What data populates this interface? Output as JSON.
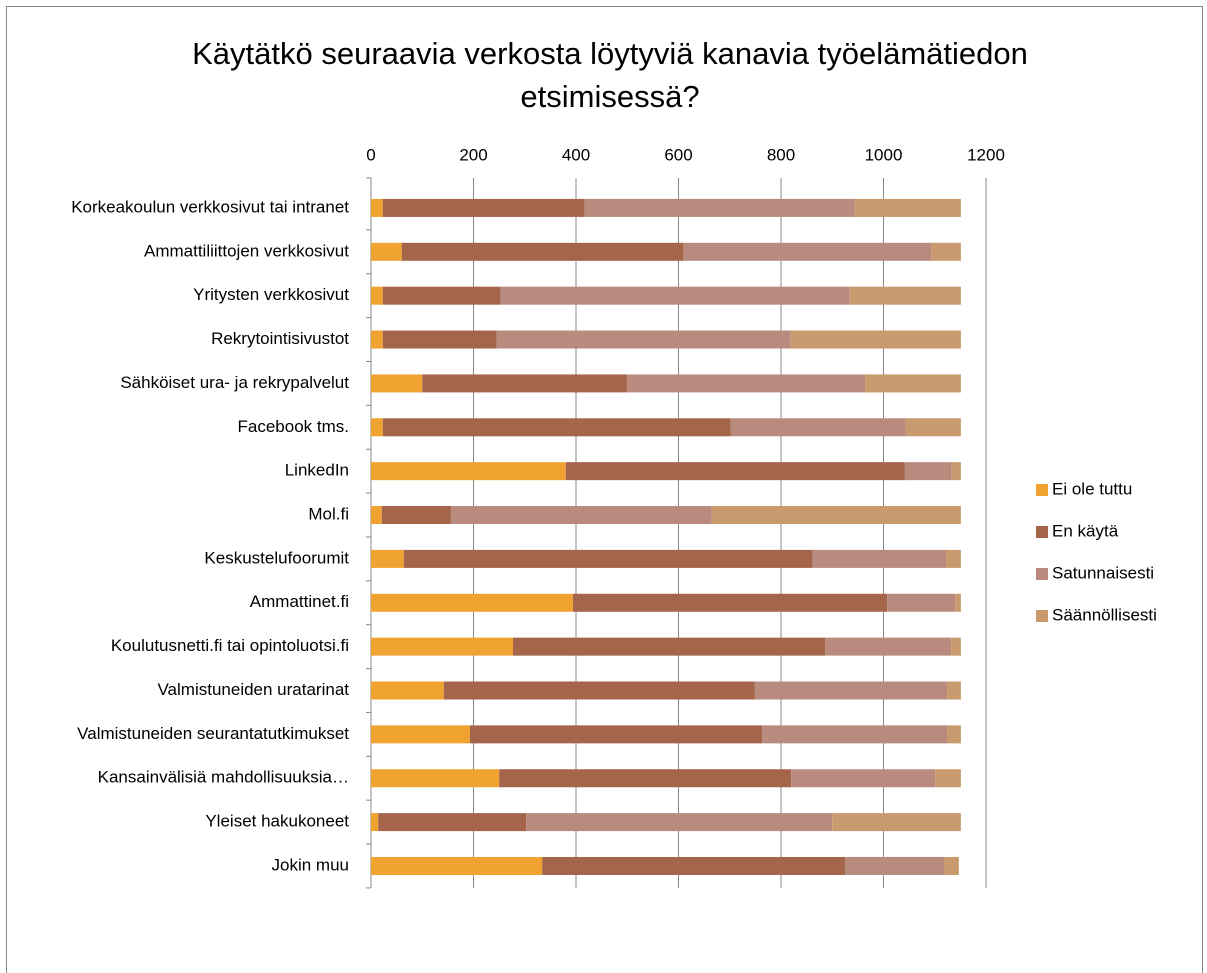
{
  "chart_data": {
    "type": "stacked_barh",
    "title": "Käytätkö seuraavia verkosta löytyviä kanavia työelämätiedon etsimisessä?",
    "categories": [
      "Korkeakoulun verkkosivut tai intranet",
      "Ammattiliittojen verkkosivut",
      "Yritysten verkkosivut",
      "Rekrytointisivustot",
      "Sähköiset ura- ja rekrypalvelut",
      "Facebook tms.",
      "LinkedIn",
      "Mol.fi",
      "Keskustelufoorumit",
      "Ammattinet.fi",
      "Koulutusnetti.fi tai opintoluotsi.fi",
      "Valmistuneiden uratarinat",
      "Valmistuneiden seurantatutkimukset",
      "Kansainvälisiä mahdollisuuksia…",
      "Yleiset hakukoneet",
      "Jokin muu"
    ],
    "series": [
      {
        "name": "Ei ole tuttu",
        "color": "#f0a330",
        "values": [
          23,
          60,
          23,
          23,
          100,
          23,
          380,
          21,
          64,
          394,
          277,
          142,
          193,
          250,
          14,
          334
        ]
      },
      {
        "name": "En käytä",
        "color": "#a5654a",
        "values": [
          394,
          550,
          230,
          222,
          400,
          679,
          661,
          135,
          798,
          613,
          609,
          607,
          570,
          570,
          289,
          591
        ]
      },
      {
        "name": "Satunnaisesti",
        "color": "#b98b7f",
        "values": [
          527,
          484,
          681,
          574,
          464,
          341,
          92,
          509,
          260,
          133,
          246,
          375,
          361,
          281,
          597,
          193
        ]
      },
      {
        "name": "Säännöllisesti",
        "color": "#c99a6e",
        "values": [
          207,
          57,
          217,
          332,
          187,
          108,
          18,
          486,
          29,
          11,
          19,
          27,
          27,
          50,
          251,
          29
        ]
      }
    ],
    "xlim": [
      0,
      1200
    ],
    "xticks": [
      0,
      200,
      400,
      600,
      800,
      1000,
      1200
    ],
    "grid": true,
    "legend": "right"
  }
}
